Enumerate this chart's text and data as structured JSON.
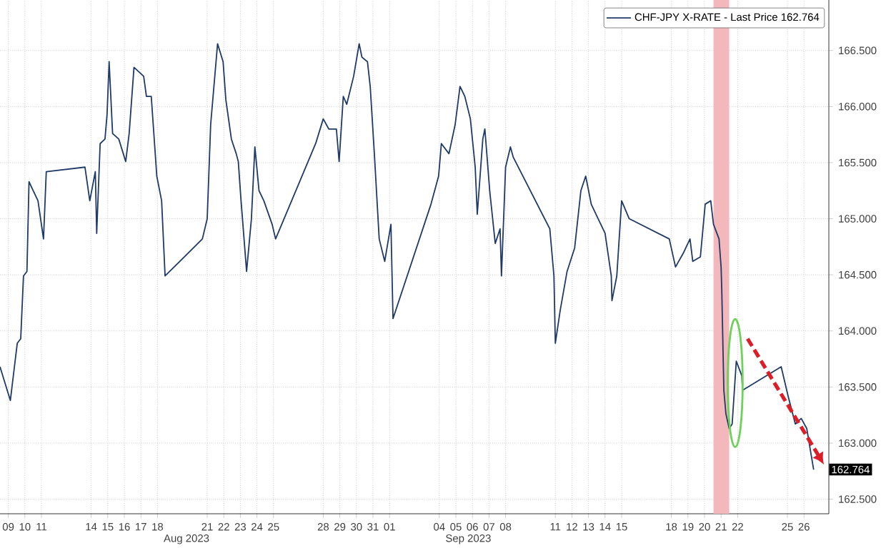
{
  "chart_data": {
    "type": "line",
    "series": [
      {
        "name": "CHF-JPY X-RATE - Last Price 162.764",
        "color": "#1f3a66",
        "x": [
          "2023-08-09T00:00",
          "2023-08-09T15:00",
          "2023-08-10T01:00",
          "2023-08-10T06:00",
          "2023-08-10T10:00",
          "2023-08-10T15:00",
          "2023-08-10T18:00",
          "2023-08-11T00:00",
          "2023-08-11T07:00",
          "2023-08-11T15:00",
          "2023-08-11T19:00",
          "2023-08-14T03:00",
          "2023-08-14T10:00",
          "2023-08-14T18:00",
          "2023-08-14T20:00",
          "2023-08-15T01:00",
          "2023-08-15T08:00",
          "2023-08-15T11:00",
          "2023-08-15T14:00",
          "2023-08-15T19:00",
          "2023-08-16T04:00",
          "2023-08-16T14:00",
          "2023-08-16T19:00",
          "2023-08-17T02:00",
          "2023-08-17T16:00",
          "2023-08-17T20:00",
          "2023-08-18T03:00",
          "2023-08-18T11:00",
          "2023-08-18T18:00",
          "2023-08-18T23:00",
          "2023-08-21T05:00",
          "2023-08-21T12:00",
          "2023-08-21T17:00",
          "2023-08-22T03:00",
          "2023-08-22T11:00",
          "2023-08-22T15:00",
          "2023-08-22T23:00",
          "2023-08-23T06:00",
          "2023-08-23T09:00",
          "2023-08-23T13:00",
          "2023-08-23T21:00",
          "2023-08-24T04:00",
          "2023-08-24T09:00",
          "2023-08-24T15:00",
          "2023-08-24T22:00",
          "2023-08-25T10:00",
          "2023-08-25T15:00",
          "2023-08-28T01:00",
          "2023-08-28T12:00",
          "2023-08-28T20:00",
          "2023-08-29T07:00",
          "2023-08-29T11:00",
          "2023-08-29T17:00",
          "2023-08-29T22:00",
          "2023-08-30T08:00",
          "2023-08-30T16:00",
          "2023-08-30T20:00",
          "2023-08-31T04:00",
          "2023-08-31T08:00",
          "2023-08-31T14:00",
          "2023-08-31T21:00",
          "2023-09-01T05:00",
          "2023-09-01T14:00",
          "2023-09-01T17:00",
          "2023-09-04T00:00",
          "2023-09-04T11:00",
          "2023-09-04T15:00",
          "2023-09-05T02:00",
          "2023-09-05T11:00",
          "2023-09-05T18:00",
          "2023-09-06T01:00",
          "2023-09-06T09:00",
          "2023-09-06T16:00",
          "2023-09-06T19:00",
          "2023-09-07T03:00",
          "2023-09-07T06:00",
          "2023-09-07T13:00",
          "2023-09-07T21:00",
          "2023-09-08T04:00",
          "2023-09-08T06:00",
          "2023-09-08T12:00",
          "2023-09-08T19:00",
          "2023-09-08T23:00",
          "2023-09-11T04:00",
          "2023-09-11T10:00",
          "2023-09-11T12:00",
          "2023-09-11T19:00",
          "2023-09-12T05:00",
          "2023-09-12T16:00",
          "2023-09-13T01:00",
          "2023-09-13T08:00",
          "2023-09-13T16:00",
          "2023-09-14T02:00",
          "2023-09-14T12:00",
          "2023-09-14T21:00",
          "2023-09-14T22:00",
          "2023-09-15T05:00",
          "2023-09-15T12:00",
          "2023-09-15T23:00",
          "2023-09-18T09:00",
          "2023-09-18T18:00",
          "2023-09-19T05:00",
          "2023-09-19T15:00",
          "2023-09-19T19:00",
          "2023-09-20T06:00",
          "2023-09-20T13:00",
          "2023-09-20T21:00",
          "2023-09-21T01:00",
          "2023-09-21T09:00",
          "2023-09-21T12:00",
          "2023-09-21T13:00",
          "2023-09-21T16:00",
          "2023-09-21T19:00",
          "2023-09-21T23:45",
          "2023-09-22T04:00",
          "2023-09-22T10:00",
          "2023-09-22T18:00",
          "2023-09-22T19:00",
          "2023-09-25T03:00",
          "2023-09-25T13:00",
          "2023-09-25T23:30",
          "2023-09-26T08:00",
          "2023-09-26T16:00",
          "2023-09-26T22:00",
          "2023-09-27T02:00"
        ],
        "values": [
          163.68,
          163.38,
          163.89,
          163.93,
          164.49,
          164.53,
          165.33,
          165.25,
          165.16,
          164.82,
          165.42,
          165.46,
          165.16,
          165.42,
          164.87,
          165.67,
          165.71,
          165.93,
          166.4,
          165.76,
          165.71,
          165.51,
          165.76,
          166.35,
          166.27,
          166.09,
          166.09,
          165.38,
          165.16,
          164.49,
          164.82,
          165.0,
          165.84,
          166.56,
          166.4,
          166.06,
          165.71,
          165.58,
          165.51,
          165.16,
          164.53,
          165.0,
          165.64,
          165.25,
          165.16,
          164.95,
          164.82,
          165.67,
          165.89,
          165.8,
          165.8,
          165.51,
          166.09,
          166.02,
          166.27,
          166.56,
          166.44,
          166.4,
          166.18,
          165.58,
          164.82,
          164.62,
          164.95,
          164.11,
          165.13,
          165.38,
          165.67,
          165.58,
          165.84,
          166.18,
          166.09,
          165.89,
          165.46,
          165.04,
          165.71,
          165.8,
          165.25,
          164.78,
          164.91,
          164.49,
          165.46,
          165.64,
          165.55,
          164.91,
          164.49,
          163.89,
          164.18,
          164.53,
          164.74,
          165.25,
          165.38,
          165.13,
          165.0,
          164.87,
          164.49,
          164.27,
          164.49,
          165.16,
          165.0,
          164.82,
          164.57,
          164.69,
          164.82,
          164.62,
          164.66,
          165.13,
          165.16,
          164.95,
          164.82,
          164.57,
          164.36,
          163.47,
          163.26,
          163.13,
          163.17,
          163.73,
          163.6,
          163.47,
          163.68,
          163.42,
          163.17,
          163.22,
          163.13,
          162.91,
          162.764
        ]
      }
    ],
    "xlim": [
      "2023-08-09T00:00",
      "2023-09-28T00:00"
    ],
    "xticks": [
      {
        "value": "2023-08-09T12:00",
        "label": "09"
      },
      {
        "value": "2023-08-10T12:00",
        "label": "10"
      },
      {
        "value": "2023-08-11T12:00",
        "label": "11"
      },
      {
        "value": "2023-08-14T12:00",
        "label": "14"
      },
      {
        "value": "2023-08-15T12:00",
        "label": "15"
      },
      {
        "value": "2023-08-16T12:00",
        "label": "16"
      },
      {
        "value": "2023-08-17T12:00",
        "label": "17"
      },
      {
        "value": "2023-08-18T12:00",
        "label": "18"
      },
      {
        "value": "2023-08-21T12:00",
        "label": "21"
      },
      {
        "value": "2023-08-22T12:00",
        "label": "22"
      },
      {
        "value": "2023-08-23T12:00",
        "label": "23"
      },
      {
        "value": "2023-08-24T12:00",
        "label": "24"
      },
      {
        "value": "2023-08-25T12:00",
        "label": "25"
      },
      {
        "value": "2023-08-28T12:00",
        "label": "28"
      },
      {
        "value": "2023-08-29T12:00",
        "label": "29"
      },
      {
        "value": "2023-08-30T12:00",
        "label": "30"
      },
      {
        "value": "2023-08-31T12:00",
        "label": "31"
      },
      {
        "value": "2023-09-01T12:00",
        "label": "01"
      },
      {
        "value": "2023-09-04T12:00",
        "label": "04"
      },
      {
        "value": "2023-09-05T12:00",
        "label": "05"
      },
      {
        "value": "2023-09-06T12:00",
        "label": "06"
      },
      {
        "value": "2023-09-07T12:00",
        "label": "07"
      },
      {
        "value": "2023-09-08T12:00",
        "label": "08"
      },
      {
        "value": "2023-09-11T12:00",
        "label": "11"
      },
      {
        "value": "2023-09-12T12:00",
        "label": "12"
      },
      {
        "value": "2023-09-13T12:00",
        "label": "13"
      },
      {
        "value": "2023-09-14T12:00",
        "label": "14"
      },
      {
        "value": "2023-09-15T12:00",
        "label": "15"
      },
      {
        "value": "2023-09-18T12:00",
        "label": "18"
      },
      {
        "value": "2023-09-19T12:00",
        "label": "19"
      },
      {
        "value": "2023-09-20T12:00",
        "label": "20"
      },
      {
        "value": "2023-09-21T12:00",
        "label": "21"
      },
      {
        "value": "2023-09-22T12:00",
        "label": "22"
      },
      {
        "value": "2023-09-25T12:00",
        "label": "25"
      },
      {
        "value": "2023-09-26T12:00",
        "label": "26"
      }
    ],
    "ylim": [
      162.37,
      166.95
    ],
    "yticks": [
      {
        "value": 162.5,
        "label": "162.500"
      },
      {
        "value": 163,
        "label": "163.000"
      },
      {
        "value": 163.5,
        "label": "163.500"
      },
      {
        "value": 164,
        "label": "164.000"
      },
      {
        "value": 164.5,
        "label": "164.500"
      },
      {
        "value": 165,
        "label": "165.000"
      },
      {
        "value": 165.5,
        "label": "165.500"
      },
      {
        "value": 166,
        "label": "166.000"
      },
      {
        "value": 166.5,
        "label": "166.500"
      }
    ],
    "bands": [
      {
        "axis": "x",
        "from": "2023-09-21T01:00",
        "to": "2023-09-21T23:45",
        "color": "#f2b8bb"
      }
    ],
    "annotations": [
      "Aug 2023",
      "Sep 2023",
      "162.764"
    ],
    "grid": true,
    "legend": "top right"
  }
}
